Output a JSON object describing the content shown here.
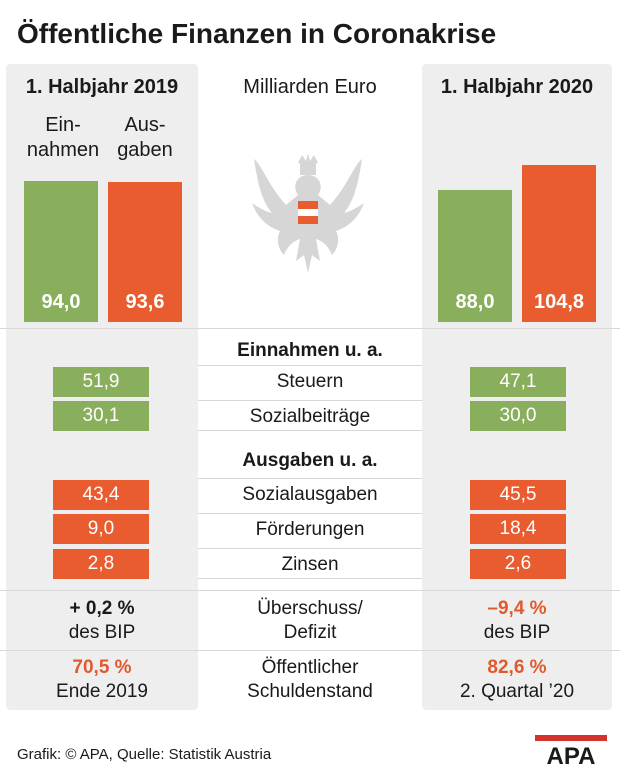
{
  "title": "Öffentliche Finanzen in Coronakrise",
  "unit": "Milliarden Euro",
  "periods": {
    "left": "1. Halbjahr 2019",
    "right": "1. Halbjahr 2020"
  },
  "column_labels": {
    "einnahmen": [
      "Ein-",
      "nahmen"
    ],
    "ausgaben": [
      "Aus-",
      "gaben"
    ]
  },
  "chart_data": {
    "type": "bar",
    "title": "Öffentliche Finanzen in Coronakrise",
    "unit": "Milliarden Euro",
    "categories": [
      "1. Halbjahr 2019",
      "1. Halbjahr 2020"
    ],
    "series": [
      {
        "name": "Einnahmen",
        "values": [
          94.0,
          88.0
        ],
        "labels": [
          "94,0",
          "88,0"
        ],
        "color": "#8aaf5c"
      },
      {
        "name": "Ausgaben",
        "values": [
          93.6,
          104.8
        ],
        "labels": [
          "93,6",
          "104,8"
        ],
        "color": "#e85c30"
      }
    ],
    "ylim": [
      0,
      110
    ]
  },
  "table": {
    "einnahmen_head": "Einnahmen u. a.",
    "ausgaben_head": "Ausgaben u. a.",
    "einnahmen_rows": [
      {
        "label": "Steuern",
        "left": "51,9",
        "right": "47,1"
      },
      {
        "label": "Sozialbeiträge",
        "left": "30,1",
        "right": "30,0"
      }
    ],
    "ausgaben_rows": [
      {
        "label": "Sozialausgaben",
        "left": "43,4",
        "right": "45,5"
      },
      {
        "label": "Förderungen",
        "left": "9,0",
        "right": "18,4"
      },
      {
        "label": "Zinsen",
        "left": "2,8",
        "right": "2,6"
      }
    ]
  },
  "balance": {
    "label": [
      "Überschuss/",
      "Defizit"
    ],
    "left_value": "+ 0,2 %",
    "left_sub": "des BIP",
    "right_value": "–9,4 %",
    "right_sub": "des BIP"
  },
  "debt": {
    "label": [
      "Öffentlicher",
      "Schuldenstand"
    ],
    "left_value": "70,5 %",
    "left_sub": "Ende 2019",
    "right_value": "82,6 %",
    "right_sub": "2. Quartal ’20"
  },
  "source": "Grafik: © APA, Quelle: Statistik Austria",
  "logo": "APA",
  "colors": {
    "green": "#8aaf5c",
    "red": "#e85c30",
    "panel": "#eeeeee"
  }
}
